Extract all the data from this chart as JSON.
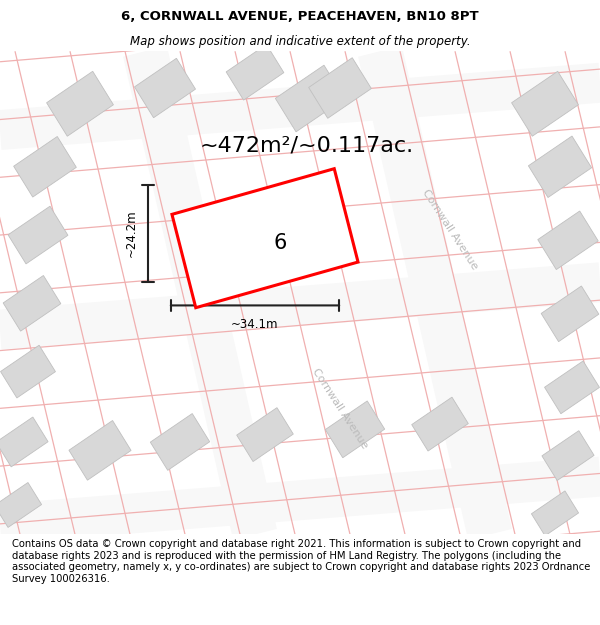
{
  "title": "6, CORNWALL AVENUE, PEACEHAVEN, BN10 8PT",
  "subtitle": "Map shows position and indicative extent of the property.",
  "area_text": "~472m²/~0.117ac.",
  "width_label": "~34.1m",
  "height_label": "~24.2m",
  "number_label": "6",
  "footer_text": "Contains OS data © Crown copyright and database right 2021. This information is subject to Crown copyright and database rights 2023 and is reproduced with the permission of HM Land Registry. The polygons (including the associated geometry, namely x, y co-ordinates) are subject to Crown copyright and database rights 2023 Ordnance Survey 100026316.",
  "map_bg_color": "#ebebeb",
  "road_fill_color": "#f8f8f8",
  "building_color": "#d8d8d8",
  "building_edge_color": "#c0c0c0",
  "plot_line_color": "#f0b0b0",
  "red_line_color": "#ff0000",
  "street_label_color": "#bbbbbb",
  "title_fontsize": 9.5,
  "subtitle_fontsize": 8.5,
  "area_fontsize": 17,
  "number_fontsize": 16,
  "footer_fontsize": 7.2,
  "dim_line_color": "#222222"
}
